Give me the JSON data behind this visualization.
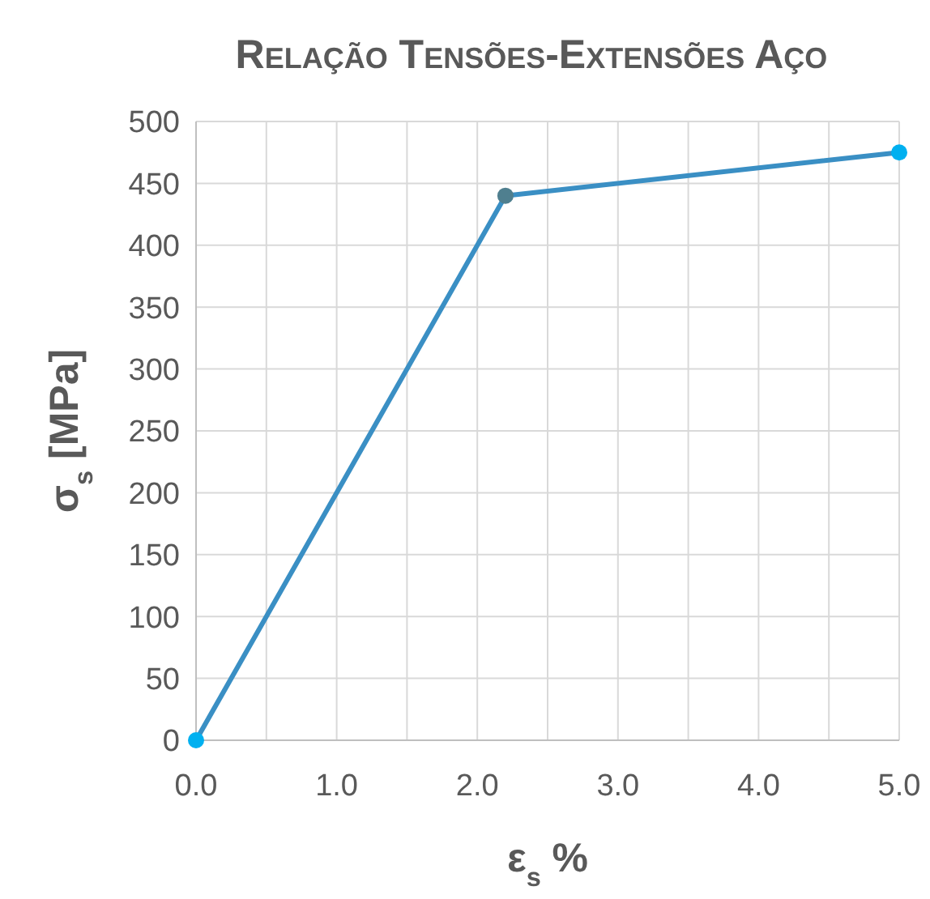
{
  "chart_data": {
    "type": "line",
    "title": "Relação Tensões-Extensões Aço",
    "xlabel": "ε$_{s}$ %",
    "ylabel": "σ$_{s}$ [MPa]",
    "series": [
      {
        "color": "#3a8fc4",
        "x": [
          0,
          2.2,
          5
        ],
        "values": [
          0,
          440,
          475
        ],
        "colors": [
          "#00b0f0",
          "#4f7f8f",
          "#00b0f0"
        ]
      }
    ],
    "xlim": [
      0,
      5
    ],
    "xticks": [
      {
        "value": 0,
        "label": "0.0"
      },
      {
        "value": 0.5,
        "label": null
      },
      {
        "value": 1,
        "label": "1.0"
      },
      {
        "value": 1.5,
        "label": null
      },
      {
        "value": 2,
        "label": "2.0"
      },
      {
        "value": 2.5,
        "label": null
      },
      {
        "value": 3,
        "label": "3.0"
      },
      {
        "value": 3.5,
        "label": null
      },
      {
        "value": 4,
        "label": "4.0"
      },
      {
        "value": 4.5,
        "label": null
      },
      {
        "value": 5,
        "label": "5.0"
      }
    ],
    "ylim": [
      0,
      500
    ],
    "yticks": [
      0,
      50,
      100,
      150,
      200,
      250,
      300,
      350,
      400,
      450,
      500
    ],
    "grid": true,
    "marker": "circle",
    "line_style": "solid"
  }
}
